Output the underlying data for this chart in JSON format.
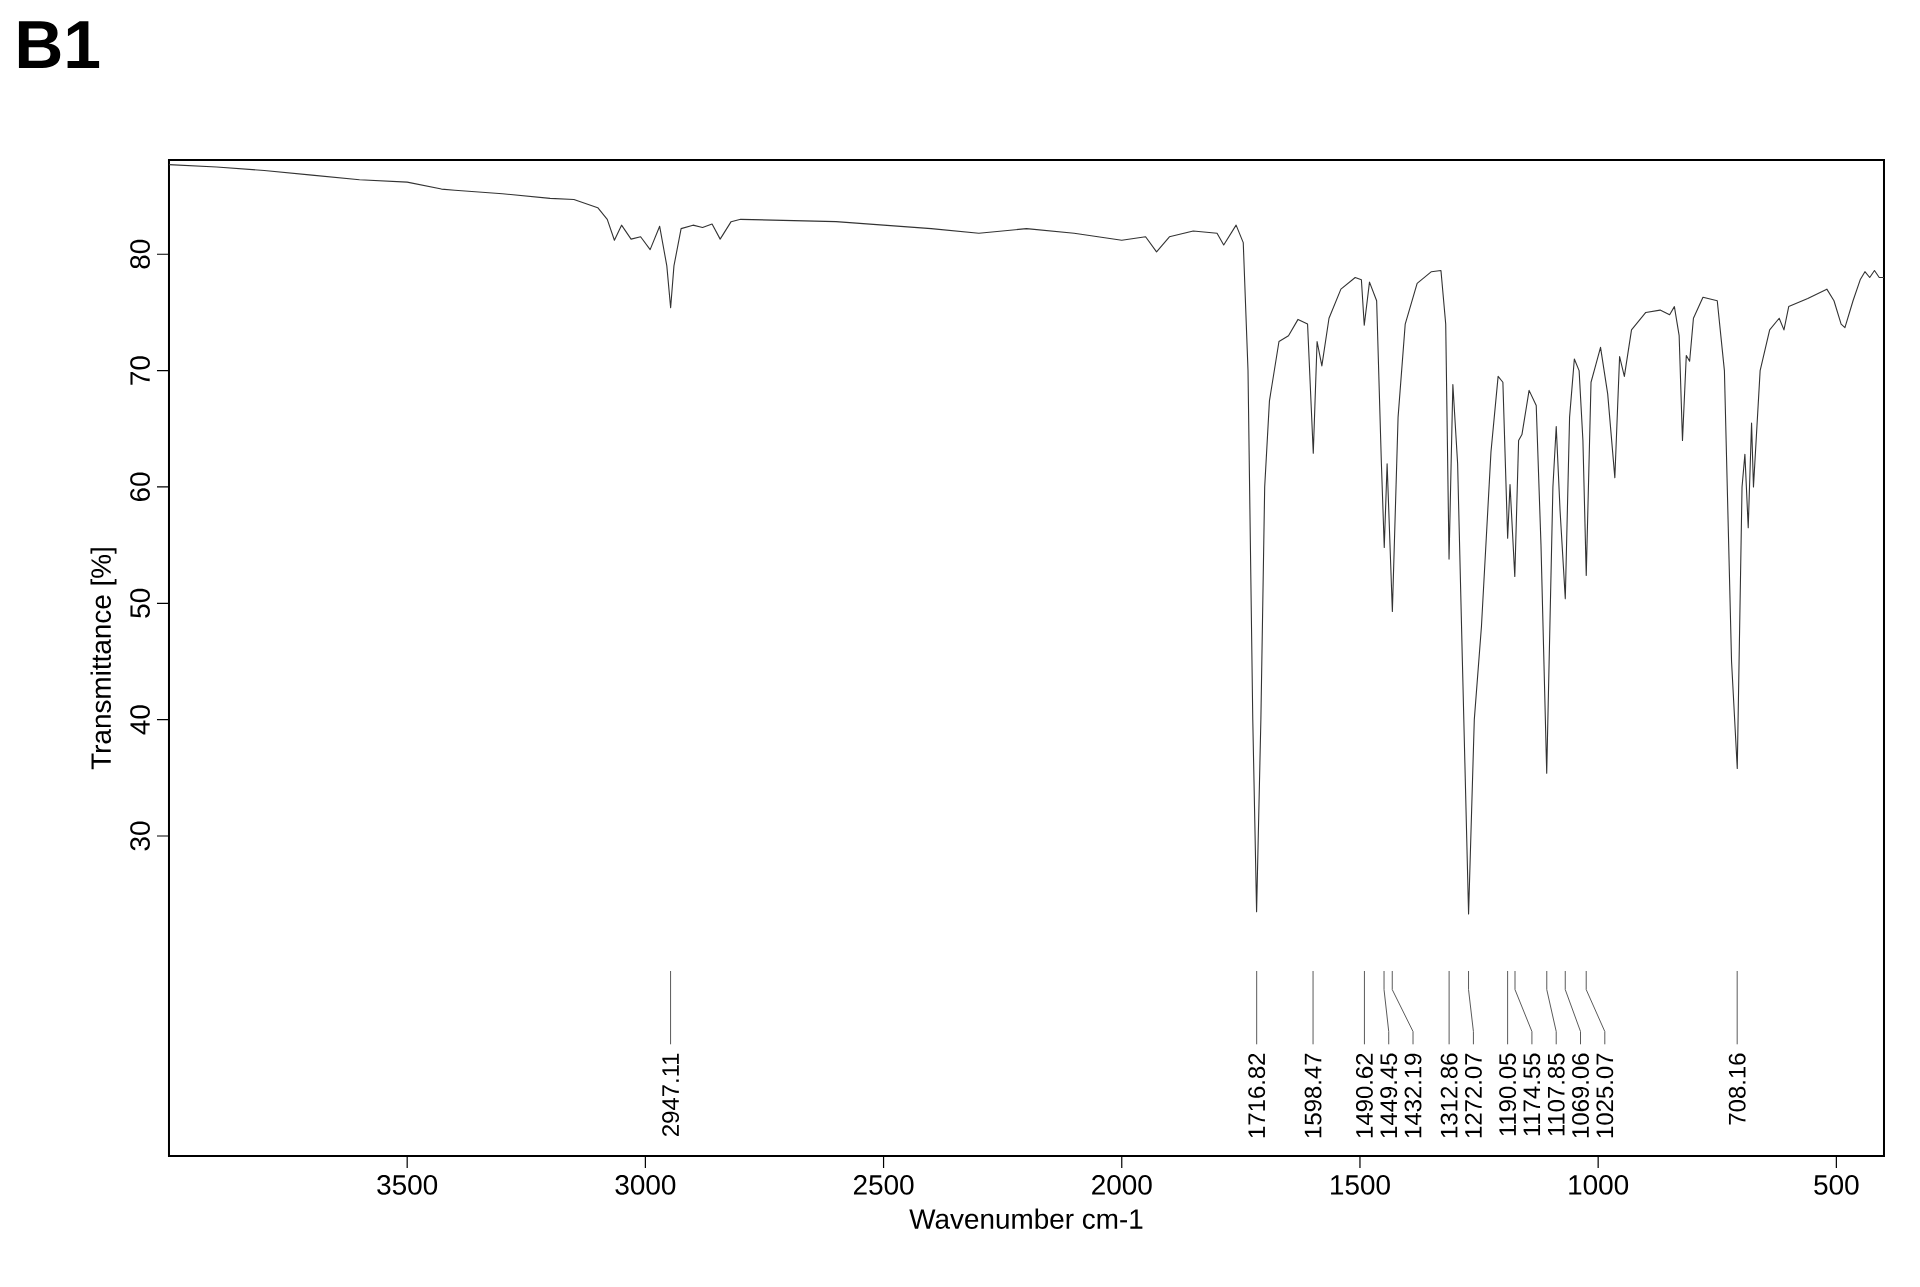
{
  "chart_data": {
    "type": "line",
    "title": "B1",
    "xlabel": "Wavenumber cm-1",
    "ylabel": "Transmittance [%]",
    "xlim": [
      4000,
      400
    ],
    "ylim": [
      2.5,
      88.1
    ],
    "xticks": [
      3500,
      3000,
      2500,
      2000,
      1500,
      1000,
      500
    ],
    "yticks": [
      30,
      40,
      50,
      60,
      70,
      80
    ],
    "grid": false,
    "marker": "none",
    "line_style": "solid",
    "series": [
      {
        "color": "#333333",
        "x": [
          4000,
          3900,
          3800,
          3700,
          3600,
          3500,
          3428,
          3400,
          3300,
          3200,
          3150,
          3100,
          3080,
          3065,
          3050,
          3030,
          3010,
          2990,
          2970,
          2955,
          2947,
          2940,
          2925,
          2900,
          2880,
          2860,
          2843,
          2820,
          2800,
          2700,
          2600,
          2500,
          2400,
          2300,
          2200,
          2100,
          2000,
          1950,
          1927,
          1900,
          1850,
          1800,
          1786,
          1760,
          1745,
          1735,
          1725,
          1717,
          1708,
          1700,
          1690,
          1670,
          1650,
          1630,
          1610,
          1598,
          1590,
          1580,
          1565,
          1540,
          1510,
          1497,
          1491,
          1480,
          1465,
          1455,
          1449,
          1443,
          1432,
          1420,
          1405,
          1380,
          1350,
          1330,
          1320,
          1313,
          1305,
          1295,
          1285,
          1272,
          1260,
          1245,
          1225,
          1210,
          1200,
          1190,
          1185,
          1175,
          1167,
          1160,
          1145,
          1130,
          1120,
          1108,
          1095,
          1088,
          1080,
          1069,
          1060,
          1050,
          1040,
          1032,
          1025,
          1015,
          1005,
          995,
          980,
          965,
          955,
          945,
          930,
          900,
          870,
          850,
          840,
          830,
          823,
          815,
          808,
          800,
          780,
          750,
          735,
          720,
          708,
          698,
          692,
          685,
          678,
          674,
          660,
          640,
          620,
          610,
          600,
          560,
          520,
          505,
          490,
          482,
          465,
          450,
          440,
          430,
          420,
          410,
          400
        ],
        "values": [
          87.7,
          87.5,
          87.2,
          86.8,
          86.4,
          86.2,
          85.6,
          85.5,
          85.2,
          84.8,
          84.7,
          84.0,
          83.0,
          81.2,
          82.5,
          81.3,
          81.5,
          80.4,
          82.4,
          79.0,
          75.4,
          79.0,
          82.2,
          82.5,
          82.3,
          82.6,
          81.3,
          82.8,
          83.0,
          82.9,
          82.8,
          82.5,
          82.2,
          81.8,
          82.2,
          81.8,
          81.2,
          81.5,
          80.2,
          81.5,
          82.0,
          81.8,
          80.8,
          82.5,
          81.0,
          70.0,
          40.0,
          23.5,
          40.0,
          60.0,
          67.4,
          72.5,
          73.0,
          74.4,
          74.0,
          62.9,
          72.5,
          70.4,
          74.5,
          77.0,
          78.0,
          77.8,
          73.9,
          77.6,
          76.0,
          62.0,
          54.8,
          62.0,
          49.3,
          66.0,
          74.0,
          77.5,
          78.5,
          78.6,
          74.0,
          53.8,
          68.8,
          62.0,
          45.0,
          23.3,
          40.0,
          48.0,
          63.0,
          69.5,
          69.0,
          55.6,
          60.2,
          52.3,
          64.0,
          64.5,
          68.3,
          67.0,
          55.0,
          35.4,
          60.0,
          65.2,
          58.0,
          50.4,
          66.0,
          71.0,
          70.0,
          64.0,
          52.4,
          69.0,
          70.5,
          72.0,
          68.0,
          60.8,
          71.2,
          69.5,
          73.5,
          75.0,
          75.2,
          74.8,
          75.5,
          73.0,
          64.0,
          71.3,
          70.8,
          74.5,
          76.3,
          76.0,
          70.0,
          45.0,
          35.8,
          60.0,
          62.8,
          56.5,
          65.5,
          60.0,
          70.0,
          73.5,
          74.5,
          73.5,
          75.5,
          76.2,
          77.0,
          76.0,
          74.0,
          73.7,
          76.0,
          77.8,
          78.5,
          78.0,
          78.6,
          78.0,
          78.0
        ]
      }
    ],
    "annotations": [
      {
        "text": "2947.11",
        "x": 2947.11
      },
      {
        "text": "1716.82",
        "x": 1716.82
      },
      {
        "text": "1598.47",
        "x": 1598.47
      },
      {
        "text": "1490.62",
        "x": 1490.62
      },
      {
        "text": "1449.45",
        "x": 1449.45
      },
      {
        "text": "1432.19",
        "x": 1432.19
      },
      {
        "text": "1312.86",
        "x": 1312.86
      },
      {
        "text": "1272.07",
        "x": 1272.07
      },
      {
        "text": "1190.05",
        "x": 1190.05
      },
      {
        "text": "1174.55",
        "x": 1174.55
      },
      {
        "text": "1107.85",
        "x": 1107.85
      },
      {
        "text": "1069.06",
        "x": 1069.06
      },
      {
        "text": "1025.07",
        "x": 1025.07
      },
      {
        "text": "708.16",
        "x": 708.16
      }
    ]
  }
}
